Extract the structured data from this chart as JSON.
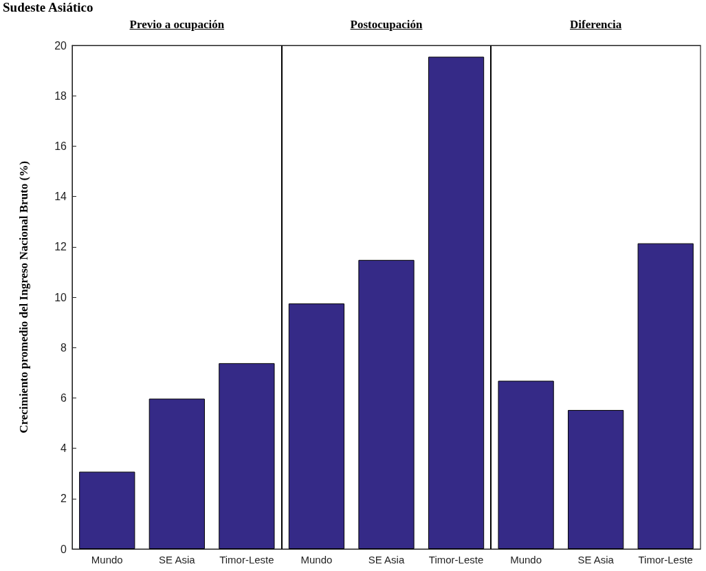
{
  "chart_data": {
    "type": "bar",
    "title": "Sudeste Asiático",
    "ylabel": "Crecimiento promedio del Ingreso Nacional Bruto (%)",
    "annotations": [
      "Previo a ocupación",
      "Postocupación",
      "Diferencia"
    ],
    "categories": [
      "Mundo",
      "SE Asia",
      "Timor-Leste",
      "Mundo",
      "SE Asia",
      "Timor-Leste",
      "Mundo",
      "SE Asia",
      "Timor-Leste"
    ],
    "series": [
      {
        "color": "#352a87",
        "values": [
          3.07,
          5.97,
          7.38,
          9.75,
          11.48,
          19.55,
          6.68,
          5.52,
          12.14
        ]
      }
    ],
    "ylim": [
      0,
      20
    ],
    "yticks": [
      0,
      2,
      4,
      6,
      8,
      10,
      12,
      14,
      16,
      18,
      20
    ],
    "grid": false
  }
}
